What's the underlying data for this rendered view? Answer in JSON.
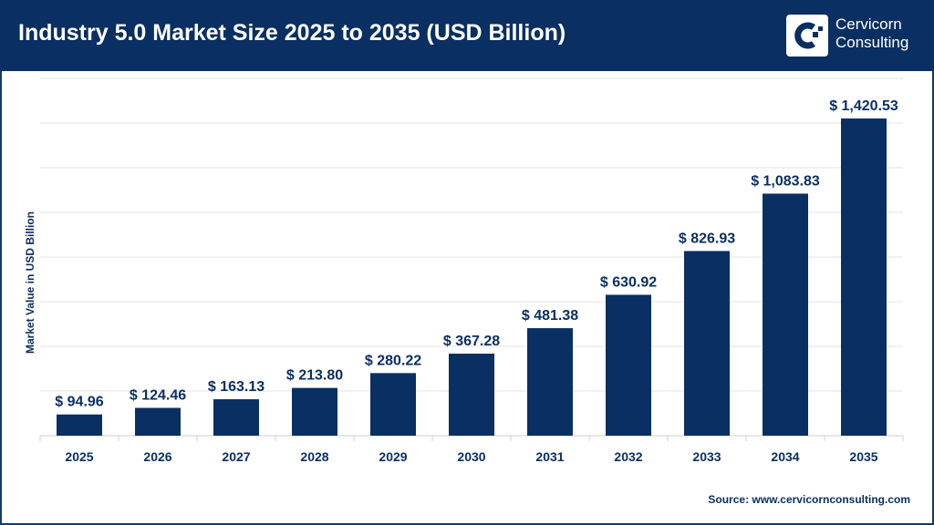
{
  "header": {
    "title": "Industry 5.0 Market Size 2025 to 2035 (USD Billion)",
    "logo_text": [
      "Cervicorn",
      "Consulting"
    ]
  },
  "colors": {
    "header": "#0a2f62",
    "bar": "#0a2f62",
    "grid": "#e3e3e3"
  },
  "source": "Source: www.cervicornconsulting.com",
  "chart_data": {
    "type": "bar",
    "title": "Industry 5.0 Market Size 2025 to 2035 (USD Billion)",
    "xlabel": "",
    "ylabel": "Market Value in USD Billion",
    "categories": [
      "2025",
      "2026",
      "2027",
      "2028",
      "2029",
      "2030",
      "2031",
      "2032",
      "2033",
      "2034",
      "2035"
    ],
    "values": [
      94.96,
      124.46,
      163.13,
      213.8,
      280.22,
      367.28,
      481.38,
      630.92,
      826.93,
      1083.83,
      1420.53
    ],
    "data_labels": [
      "$ 94.96",
      "$ 124.46",
      "$ 163.13",
      "$ 213.80",
      "$ 280.22",
      "$ 367.28",
      "$ 481.38",
      "$ 630.92",
      "$ 826.93",
      "$ 1,083.83",
      "$ 1,420.53"
    ],
    "ylim": [
      0,
      1600
    ],
    "grid": true,
    "y_tick_labels_shown": false
  }
}
